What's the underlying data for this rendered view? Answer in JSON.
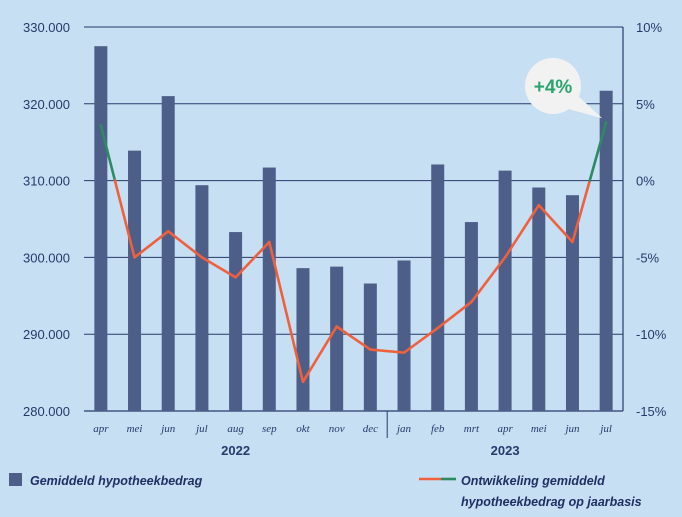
{
  "chart_data": {
    "type": "bar+line",
    "categories": [
      "apr",
      "mei",
      "jun",
      "jul",
      "aug",
      "sep",
      "okt",
      "nov",
      "dec",
      "jan",
      "feb",
      "mrt",
      "apr",
      "mei",
      "jun",
      "jul"
    ],
    "year_groups": [
      {
        "label": "2022",
        "start": 0,
        "end": 8
      },
      {
        "label": "2023",
        "start": 9,
        "end": 15
      }
    ],
    "series": [
      {
        "name": "Gemiddeld hypotheekbedrag",
        "kind": "bar",
        "axis": "left",
        "color": "#4d5e88",
        "values": [
          327500,
          313900,
          321000,
          309400,
          303300,
          311700,
          298600,
          298800,
          296600,
          299600,
          312100,
          304600,
          311300,
          309100,
          308100,
          321700
        ]
      },
      {
        "name": "Ontwikkeling gemiddeld hypotheekbedrag op jaarbasis",
        "kind": "line",
        "axis": "right",
        "color": "#f0603c",
        "positive_color": "#2d8a62",
        "values": [
          3.6,
          -5.0,
          -3.3,
          -5.0,
          -6.3,
          -4.0,
          -13.1,
          -9.5,
          -11.0,
          -11.2,
          -9.6,
          -7.9,
          -5.0,
          -1.6,
          -4.0,
          3.8
        ]
      }
    ],
    "y_left": {
      "min": 280000,
      "max": 330000,
      "ticks": [
        "280.000",
        "290.000",
        "300.000",
        "310.000",
        "320.000",
        "330.000"
      ]
    },
    "y_right": {
      "min": -15,
      "max": 10,
      "ticks": [
        "-15%",
        "-10%",
        "-5%",
        "0%",
        "5%",
        "10%"
      ]
    },
    "annotation": {
      "text": "+4%",
      "category_index": 15
    },
    "legend": [
      {
        "label": "Gemiddeld hypotheekbedrag",
        "symbol": "square"
      },
      {
        "label_line1": "Ontwikkeling gemiddeld",
        "label_line2": "hypotheekbedrag op jaarbasis",
        "symbol": "line"
      }
    ],
    "grid": true,
    "background": "#c6dff2",
    "axis_color": "#273a6c",
    "callout_fill": "#f2f2f2",
    "callout_text_color": "#2aa56e"
  }
}
